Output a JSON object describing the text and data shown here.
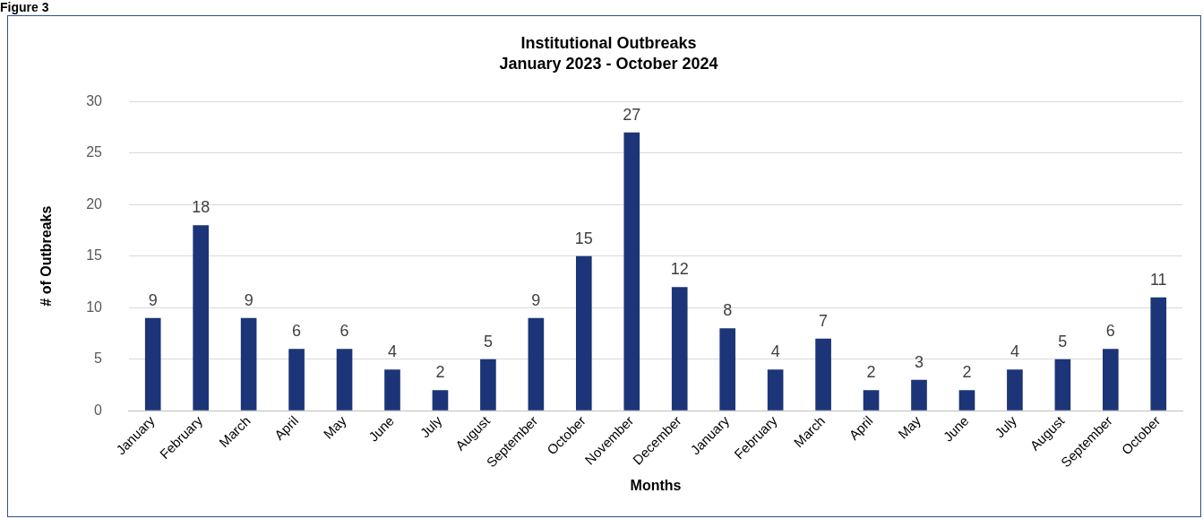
{
  "chart_data": {
    "type": "bar",
    "title": "Institutional Outbreaks",
    "subtitle": "January 2023 - October 2024",
    "xlabel": "Months",
    "ylabel": "# of Outbreaks",
    "annotations": [
      "Figure 3"
    ],
    "categories": [
      "January",
      "February",
      "March",
      "April",
      "May",
      "June",
      "July",
      "August",
      "September",
      "October",
      "November",
      "December",
      "January",
      "February",
      "March",
      "April",
      "May",
      "June",
      "July",
      "August",
      "September",
      "October"
    ],
    "values": [
      9,
      18,
      9,
      6,
      6,
      4,
      2,
      5,
      9,
      15,
      27,
      12,
      8,
      4,
      7,
      2,
      3,
      2,
      4,
      5,
      6,
      11
    ],
    "color": "#1c3578",
    "ylim": [
      0,
      30
    ],
    "yticks": [
      0,
      5,
      10,
      15,
      20,
      25,
      30
    ],
    "grid": "y",
    "data_labels": true
  }
}
